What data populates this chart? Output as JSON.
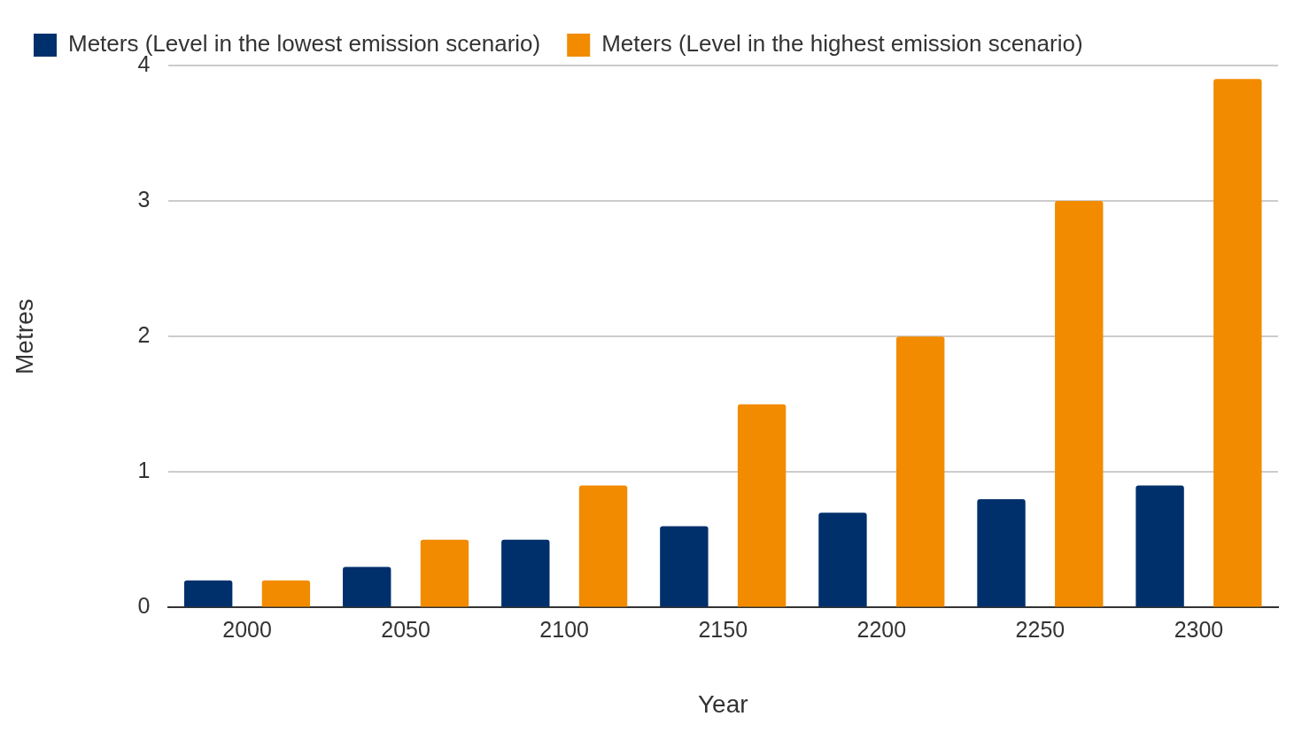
{
  "chart_data": {
    "type": "bar",
    "xlabel": "Year",
    "ylabel": "Metres",
    "categories": [
      "2000",
      "2050",
      "2100",
      "2150",
      "2200",
      "2250",
      "2300"
    ],
    "series": [
      {
        "name": "Meters (Level in the lowest emission scenario)",
        "color": "#00306b",
        "values": [
          0.2,
          0.3,
          0.5,
          0.6,
          0.7,
          0.8,
          0.9
        ]
      },
      {
        "name": "Meters (Level in the highest emission scenario)",
        "color": "#f28b00",
        "values": [
          0.2,
          0.5,
          0.9,
          1.5,
          2.0,
          3.0,
          3.9
        ]
      }
    ],
    "ylim": [
      0,
      4
    ],
    "yticks": [
      0,
      1,
      2,
      3,
      4
    ],
    "grid": "y",
    "legend": "top left"
  }
}
